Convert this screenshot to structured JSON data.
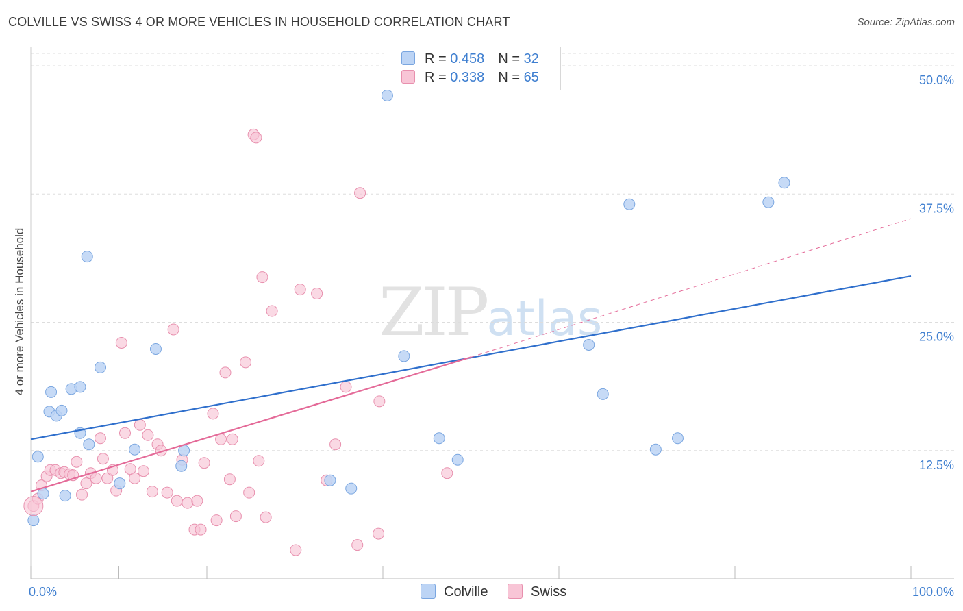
{
  "header": {
    "title": "COLVILLE VS SWISS 4 OR MORE VEHICLES IN HOUSEHOLD CORRELATION CHART",
    "source": "Source: ZipAtlas.com"
  },
  "watermark": {
    "zip": "ZIP",
    "atlas": "atlas"
  },
  "legend": {
    "rows": [
      {
        "r_label": "R = ",
        "r_value": "0.458",
        "n_label": "N = ",
        "n_value": "32"
      },
      {
        "r_label": "R = ",
        "r_value": "0.338",
        "n_label": "N = ",
        "n_value": "65"
      }
    ]
  },
  "colors": {
    "colville_fill": "#bcd4f5",
    "colville_stroke": "#7aa6e0",
    "colville_line": "#2f6fcc",
    "swiss_fill": "#f8c5d6",
    "swiss_stroke": "#e890ae",
    "swiss_line": "#e46a98",
    "grid": "#dddddd",
    "tick_text": "#3f7fd0"
  },
  "chart_data": {
    "type": "scatter",
    "title": "COLVILLE VS SWISS 4 OR MORE VEHICLES IN HOUSEHOLD CORRELATION CHART",
    "xlabel": "",
    "ylabel": "4 or more Vehicles in Household",
    "xlim": [
      0,
      100
    ],
    "ylim": [
      0,
      50
    ],
    "x_tick_labels": [
      "0.0%",
      "100.0%"
    ],
    "y_ticks": [
      12.5,
      25.0,
      37.5,
      50.0
    ],
    "y_tick_labels": [
      "12.5%",
      "25.0%",
      "37.5%",
      "50.0%"
    ],
    "legend_position": "top-center",
    "series": [
      {
        "name": "Colville",
        "points": [
          [
            0.3,
            5.7
          ],
          [
            0.8,
            11.9
          ],
          [
            1.4,
            8.3
          ],
          [
            2.1,
            16.3
          ],
          [
            2.3,
            18.2
          ],
          [
            2.9,
            15.9
          ],
          [
            3.5,
            16.4
          ],
          [
            3.9,
            8.1
          ],
          [
            4.6,
            18.5
          ],
          [
            5.6,
            18.7
          ],
          [
            5.6,
            14.2
          ],
          [
            6.4,
            31.4
          ],
          [
            6.6,
            13.1
          ],
          [
            7.9,
            20.6
          ],
          [
            10.1,
            9.3
          ],
          [
            11.8,
            12.6
          ],
          [
            14.2,
            22.4
          ],
          [
            17.1,
            11.0
          ],
          [
            17.4,
            12.5
          ],
          [
            34.0,
            9.6
          ],
          [
            36.4,
            8.8
          ],
          [
            40.5,
            47.1
          ],
          [
            42.4,
            21.7
          ],
          [
            46.4,
            13.7
          ],
          [
            48.5,
            11.6
          ],
          [
            63.4,
            22.8
          ],
          [
            65.0,
            18.0
          ],
          [
            68.0,
            36.5
          ],
          [
            71.0,
            12.6
          ],
          [
            73.5,
            13.7
          ],
          [
            83.8,
            36.7
          ],
          [
            85.6,
            38.6
          ]
        ]
      },
      {
        "name": "Swiss",
        "points": [
          [
            0.3,
            7.1
          ],
          [
            0.8,
            7.8
          ],
          [
            1.2,
            9.1
          ],
          [
            1.8,
            10.0
          ],
          [
            2.2,
            10.6
          ],
          [
            2.8,
            10.6
          ],
          [
            3.4,
            10.3
          ],
          [
            3.8,
            10.4
          ],
          [
            4.4,
            10.2
          ],
          [
            4.8,
            10.1
          ],
          [
            5.2,
            11.4
          ],
          [
            5.8,
            8.2
          ],
          [
            6.3,
            9.3
          ],
          [
            6.8,
            10.3
          ],
          [
            7.4,
            9.8
          ],
          [
            7.9,
            13.7
          ],
          [
            8.2,
            11.7
          ],
          [
            8.7,
            9.8
          ],
          [
            9.3,
            10.6
          ],
          [
            9.7,
            8.6
          ],
          [
            10.3,
            23.0
          ],
          [
            10.7,
            14.2
          ],
          [
            11.3,
            10.7
          ],
          [
            11.8,
            9.8
          ],
          [
            12.4,
            15.0
          ],
          [
            12.8,
            10.5
          ],
          [
            13.3,
            14.0
          ],
          [
            13.8,
            8.5
          ],
          [
            14.4,
            13.1
          ],
          [
            14.8,
            12.5
          ],
          [
            15.5,
            8.4
          ],
          [
            16.2,
            24.3
          ],
          [
            16.6,
            7.6
          ],
          [
            17.2,
            11.6
          ],
          [
            17.8,
            7.4
          ],
          [
            18.6,
            4.8
          ],
          [
            18.9,
            7.6
          ],
          [
            19.3,
            4.8
          ],
          [
            19.7,
            11.3
          ],
          [
            20.7,
            16.1
          ],
          [
            21.1,
            5.7
          ],
          [
            21.6,
            13.6
          ],
          [
            22.1,
            20.1
          ],
          [
            22.6,
            9.7
          ],
          [
            22.9,
            13.6
          ],
          [
            23.3,
            6.1
          ],
          [
            24.4,
            21.1
          ],
          [
            24.8,
            8.4
          ],
          [
            25.3,
            43.3
          ],
          [
            25.6,
            43.0
          ],
          [
            25.9,
            11.5
          ],
          [
            26.3,
            29.4
          ],
          [
            26.7,
            6.0
          ],
          [
            27.4,
            26.1
          ],
          [
            30.1,
            2.8
          ],
          [
            30.6,
            28.2
          ],
          [
            32.5,
            27.8
          ],
          [
            33.6,
            9.6
          ],
          [
            34.6,
            13.1
          ],
          [
            35.8,
            18.7
          ],
          [
            37.1,
            3.3
          ],
          [
            37.4,
            37.6
          ],
          [
            39.6,
            17.3
          ],
          [
            39.5,
            4.4
          ],
          [
            47.3,
            10.3
          ]
        ]
      }
    ],
    "trend_lines": [
      {
        "name": "Colville",
        "x0": 0,
        "y0": 13.6,
        "x1": 100,
        "y1": 29.5,
        "style": "solid"
      },
      {
        "name": "Swiss",
        "x0": 0,
        "y0": 8.5,
        "x1": 50,
        "y1": 21.6,
        "style": "solid"
      },
      {
        "name": "Swiss",
        "x0": 50,
        "y0": 21.6,
        "x1": 100,
        "y1": 35.1,
        "style": "dashed"
      }
    ]
  },
  "bottom_legend": {
    "colville": "Colville",
    "swiss": "Swiss"
  }
}
